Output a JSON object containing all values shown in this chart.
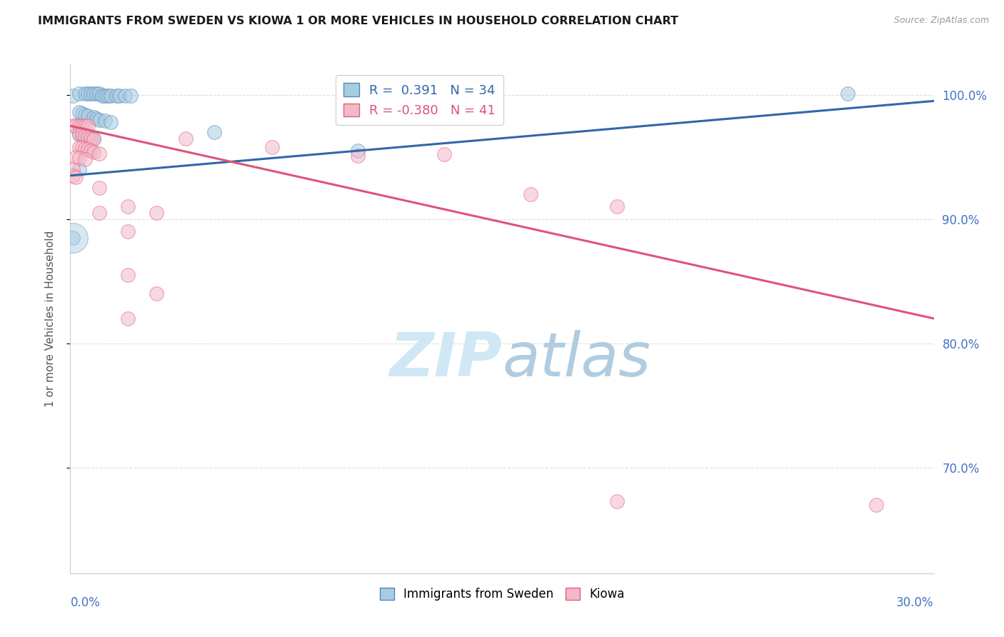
{
  "title": "IMMIGRANTS FROM SWEDEN VS KIOWA 1 OR MORE VEHICLES IN HOUSEHOLD CORRELATION CHART",
  "source": "Source: ZipAtlas.com",
  "ylabel": "1 or more Vehicles in Household",
  "legend_blue_label": "Immigrants from Sweden",
  "legend_pink_label": "Kiowa",
  "r_blue": "0.391",
  "n_blue": "34",
  "r_pink": "-0.380",
  "n_pink": "41",
  "x_min": 0.0,
  "x_max": 0.3,
  "y_min": 0.615,
  "y_max": 1.025,
  "blue_color": "#a8cce0",
  "pink_color": "#f4b8c8",
  "blue_edge_color": "#5588bb",
  "pink_edge_color": "#e06080",
  "blue_line_color": "#3366aa",
  "pink_line_color": "#dd5577",
  "background_color": "#ffffff",
  "grid_color": "#dddddd",
  "right_tick_color": "#4472c4",
  "watermark_color": "#d0e8f5",
  "blue_line_y0": 0.935,
  "blue_line_y1": 0.995,
  "pink_line_y0": 0.975,
  "pink_line_y1": 0.82,
  "blue_scatter_x": [
    0.001,
    0.003,
    0.005,
    0.006,
    0.007,
    0.008,
    0.009,
    0.01,
    0.011,
    0.012,
    0.013,
    0.014,
    0.016,
    0.017,
    0.019,
    0.021,
    0.003,
    0.004,
    0.005,
    0.006,
    0.008,
    0.009,
    0.01,
    0.012,
    0.014,
    0.003,
    0.004,
    0.006,
    0.008,
    0.003,
    0.001,
    0.05,
    0.1,
    0.27
  ],
  "blue_scatter_y": [
    0.999,
    1.001,
    1.001,
    1.001,
    1.001,
    1.001,
    1.001,
    1.001,
    0.999,
    0.999,
    0.999,
    0.999,
    0.999,
    0.999,
    0.999,
    0.999,
    0.986,
    0.985,
    0.984,
    0.983,
    0.982,
    0.981,
    0.98,
    0.979,
    0.978,
    0.968,
    0.967,
    0.966,
    0.965,
    0.94,
    0.885,
    0.97,
    0.955,
    1.001
  ],
  "pink_scatter_x": [
    0.001,
    0.002,
    0.003,
    0.004,
    0.005,
    0.006,
    0.003,
    0.004,
    0.005,
    0.006,
    0.007,
    0.008,
    0.003,
    0.004,
    0.005,
    0.006,
    0.007,
    0.008,
    0.01,
    0.002,
    0.003,
    0.005,
    0.001,
    0.001,
    0.002,
    0.04,
    0.07,
    0.1,
    0.13,
    0.16,
    0.19,
    0.01,
    0.02,
    0.03,
    0.01,
    0.02,
    0.02,
    0.03,
    0.02,
    0.19,
    0.28
  ],
  "pink_scatter_x_extra": [],
  "pink_scatter_y": [
    0.975,
    0.975,
    0.975,
    0.975,
    0.975,
    0.975,
    0.968,
    0.968,
    0.967,
    0.966,
    0.965,
    0.964,
    0.958,
    0.958,
    0.957,
    0.956,
    0.955,
    0.954,
    0.953,
    0.95,
    0.949,
    0.948,
    0.94,
    0.935,
    0.934,
    0.965,
    0.958,
    0.951,
    0.952,
    0.92,
    0.91,
    0.925,
    0.91,
    0.905,
    0.905,
    0.89,
    0.855,
    0.84,
    0.82,
    0.673,
    0.67
  ],
  "yticks": [
    0.7,
    0.8,
    0.9,
    1.0
  ],
  "ytick_labels": [
    "70.0%",
    "80.0%",
    "90.0%",
    "100.0%"
  ]
}
